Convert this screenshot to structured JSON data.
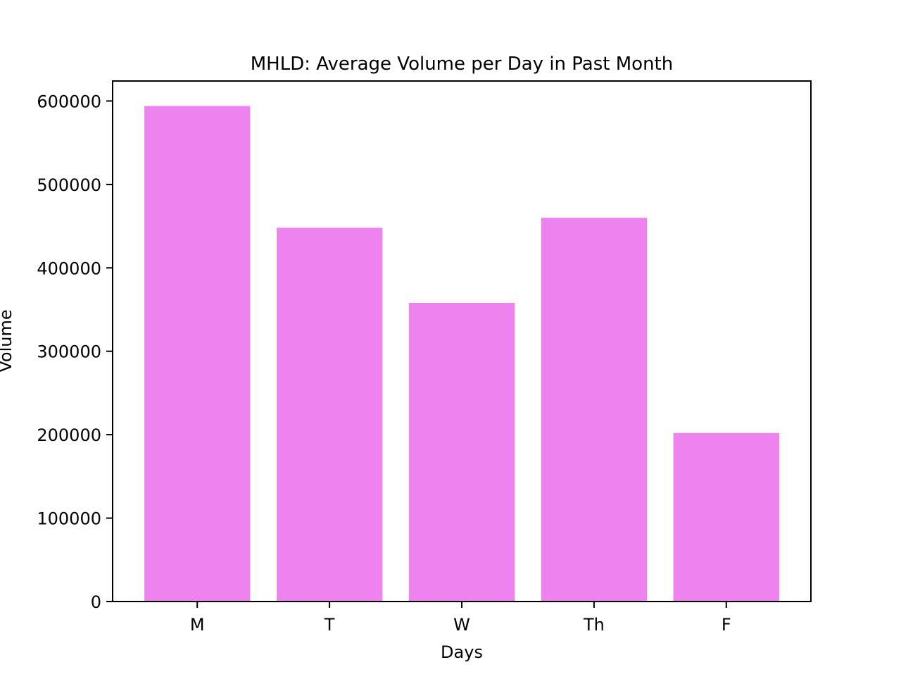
{
  "chart_data": {
    "type": "bar",
    "title": "MHLD: Average Volume per Day in Past Month",
    "xlabel": "Days",
    "ylabel": "Volume",
    "categories": [
      "M",
      "T",
      "W",
      "Th",
      "F"
    ],
    "values": [
      594000,
      448000,
      358000,
      460000,
      202000
    ],
    "ylim": [
      0,
      624000
    ],
    "yticks": [
      0,
      100000,
      200000,
      300000,
      400000,
      500000,
      600000
    ],
    "bar_color": "#ee82ee",
    "grid": false,
    "legend": "none"
  }
}
